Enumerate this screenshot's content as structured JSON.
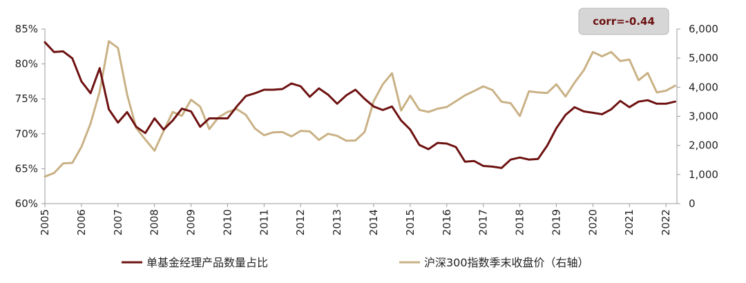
{
  "chart_data": {
    "type": "line",
    "annotation": "corr=-0.44",
    "x_ticks": [
      "2005",
      "2006",
      "2007",
      "2008",
      "2009",
      "2010",
      "2011",
      "2012",
      "2013",
      "2014",
      "2015",
      "2016",
      "2017",
      "2018",
      "2019",
      "2020",
      "2021",
      "2022"
    ],
    "x_range": [
      2005,
      2022.3
    ],
    "y_left": {
      "ticks": [
        "60%",
        "65%",
        "70%",
        "75%",
        "80%",
        "85%"
      ],
      "range": [
        60,
        85
      ]
    },
    "y_right": {
      "ticks": [
        "0",
        "1,000",
        "2,000",
        "3,000",
        "4,000",
        "5,000",
        "6,000"
      ],
      "range": [
        0,
        6000
      ]
    },
    "colors": {
      "series1": "#6e1111",
      "series2": "#c9b185",
      "axis": "#999999",
      "annotation_bg": "#d6d6d6"
    },
    "legend_position": "bottom",
    "series": [
      {
        "name": "单基金经理产品数量占比",
        "axis": "left",
        "x": [
          2005.0,
          2005.25,
          2005.5,
          2005.75,
          2006.0,
          2006.25,
          2006.5,
          2006.75,
          2007.0,
          2007.25,
          2007.5,
          2007.75,
          2008.0,
          2008.25,
          2008.5,
          2008.75,
          2009.0,
          2009.25,
          2009.5,
          2009.75,
          2010.0,
          2010.25,
          2010.5,
          2010.75,
          2011.0,
          2011.25,
          2011.5,
          2011.75,
          2012.0,
          2012.25,
          2012.5,
          2012.75,
          2013.0,
          2013.25,
          2013.5,
          2013.75,
          2014.0,
          2014.25,
          2014.5,
          2014.75,
          2015.0,
          2015.25,
          2015.5,
          2015.75,
          2016.0,
          2016.25,
          2016.5,
          2016.75,
          2017.0,
          2017.25,
          2017.5,
          2017.75,
          2018.0,
          2018.25,
          2018.5,
          2018.75,
          2019.0,
          2019.25,
          2019.5,
          2019.75,
          2020.0,
          2020.25,
          2020.5,
          2020.75,
          2021.0,
          2021.25,
          2021.5,
          2021.75,
          2022.0,
          2022.25
        ],
        "values": [
          83.1,
          81.7,
          81.8,
          80.8,
          77.5,
          75.8,
          79.4,
          73.5,
          71.6,
          73.1,
          71.0,
          70.1,
          72.2,
          70.6,
          71.9,
          73.6,
          73.2,
          71.0,
          72.2,
          72.2,
          72.2,
          73.9,
          75.4,
          75.8,
          76.3,
          76.3,
          76.4,
          77.2,
          76.8,
          75.3,
          76.5,
          75.6,
          74.3,
          75.5,
          76.3,
          75.0,
          73.9,
          73.4,
          73.9,
          71.9,
          70.6,
          68.4,
          67.8,
          68.7,
          68.6,
          68.1,
          66.0,
          66.1,
          65.4,
          65.3,
          65.1,
          66.3,
          66.6,
          66.3,
          66.4,
          68.3,
          70.8,
          72.7,
          73.8,
          73.2,
          73.0,
          72.8,
          73.5,
          74.7,
          73.8,
          74.6,
          74.8,
          74.3,
          74.3,
          74.6
        ]
      },
      {
        "name": "沪深300指数季末收盘价（右轴）",
        "axis": "right",
        "x": [
          2005.0,
          2005.25,
          2005.5,
          2005.75,
          2006.0,
          2006.25,
          2006.5,
          2006.75,
          2007.0,
          2007.25,
          2007.5,
          2007.75,
          2008.0,
          2008.25,
          2008.5,
          2008.75,
          2009.0,
          2009.25,
          2009.5,
          2009.75,
          2010.0,
          2010.25,
          2010.5,
          2010.75,
          2011.0,
          2011.25,
          2011.5,
          2011.75,
          2012.0,
          2012.25,
          2012.5,
          2012.75,
          2013.0,
          2013.25,
          2013.5,
          2013.75,
          2014.0,
          2014.25,
          2014.5,
          2014.75,
          2015.0,
          2015.25,
          2015.5,
          2015.75,
          2016.0,
          2016.25,
          2016.5,
          2016.75,
          2017.0,
          2017.25,
          2017.5,
          2017.75,
          2018.0,
          2018.25,
          2018.5,
          2018.75,
          2019.0,
          2019.25,
          2019.5,
          2019.75,
          2020.0,
          2020.25,
          2020.5,
          2020.75,
          2021.0,
          2021.25,
          2021.5,
          2021.75,
          2022.0,
          2022.25
        ],
        "values": [
          930,
          1050,
          1380,
          1400,
          1950,
          2750,
          3850,
          5580,
          5350,
          3750,
          2600,
          2200,
          1820,
          2500,
          3150,
          3020,
          3570,
          3330,
          2560,
          2960,
          3150,
          3250,
          3050,
          2580,
          2350,
          2450,
          2460,
          2310,
          2500,
          2480,
          2190,
          2400,
          2330,
          2160,
          2170,
          2460,
          3520,
          4100,
          4480,
          3200,
          3710,
          3220,
          3150,
          3260,
          3320,
          3520,
          3720,
          3870,
          4030,
          3900,
          3500,
          3450,
          3010,
          3860,
          3820,
          3800,
          4100,
          3680,
          4160,
          4580,
          5210,
          5060,
          5210,
          4900,
          4950,
          4240,
          4490,
          3820,
          3880,
          4050
        ]
      }
    ]
  }
}
